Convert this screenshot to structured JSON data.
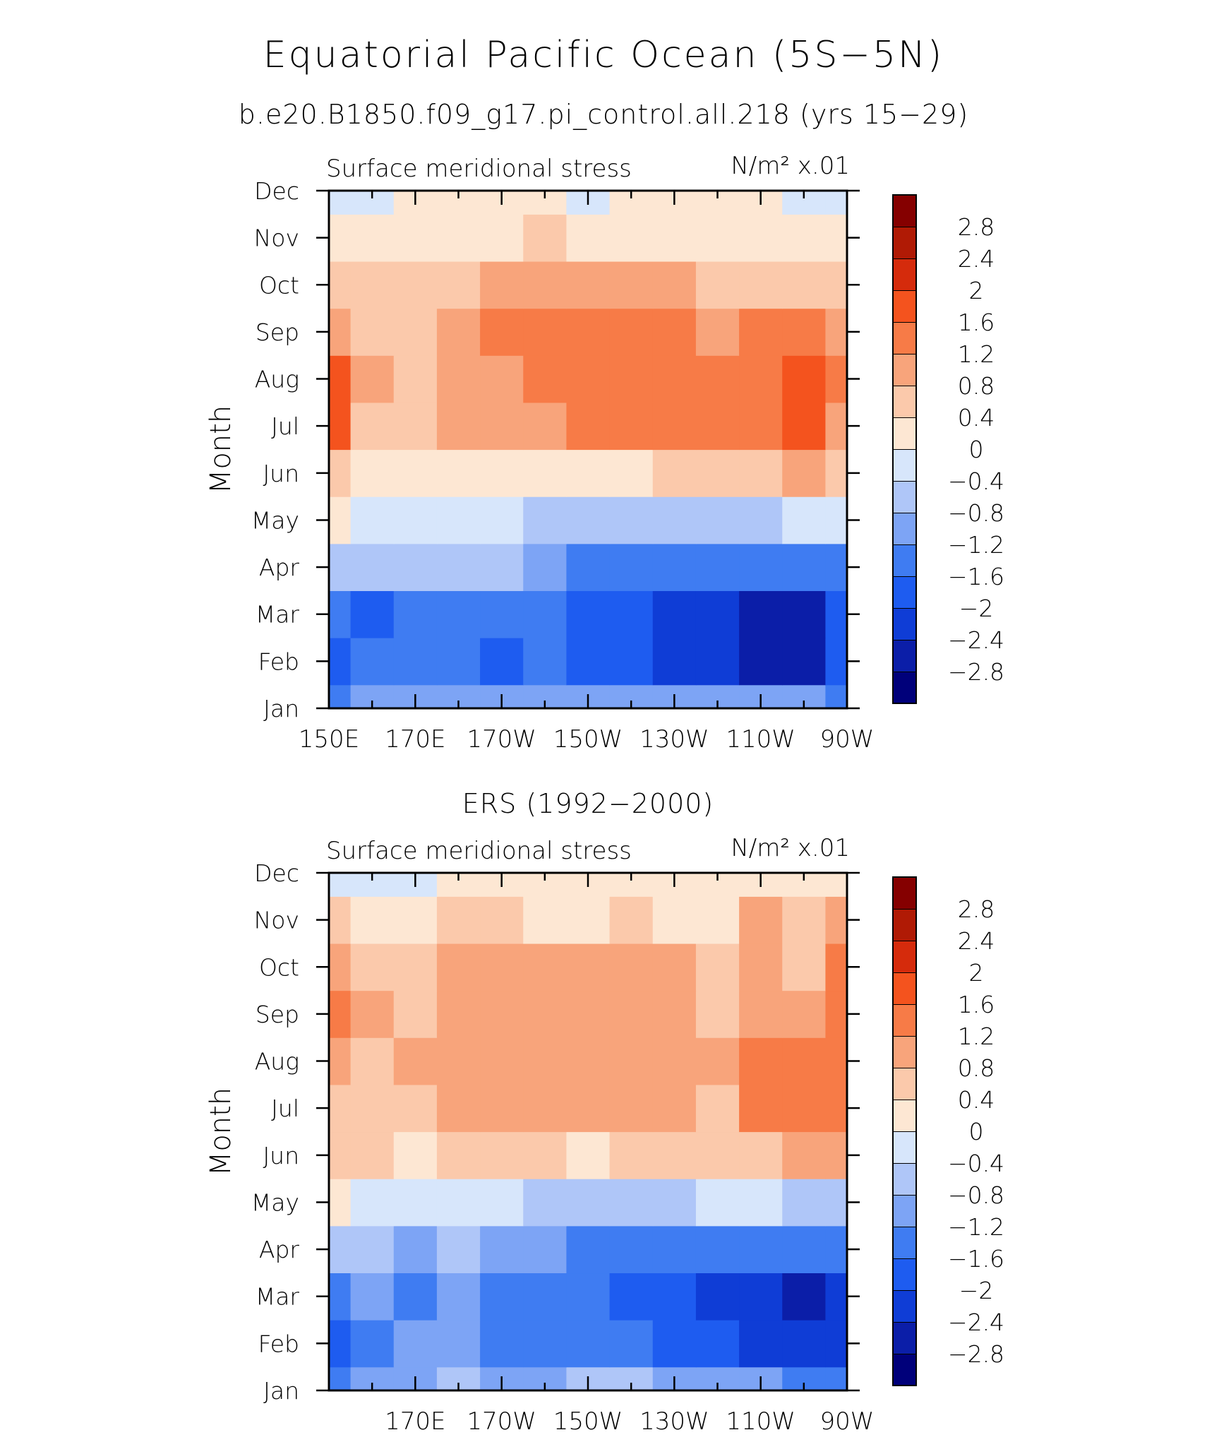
{
  "figure": {
    "title": "Equatorial Pacific Ocean (5S−5N)",
    "subtitle": "b.e20.B1850.f09_g17.pi_control.all.218 (yrs 15−29)"
  },
  "chart_data": [
    {
      "type": "heatmap",
      "panel_title": "",
      "left_label": "Surface meridional stress",
      "right_label": "N/m² x.01",
      "ylabel": "Month",
      "xlabel": "",
      "x_ticks": [
        "150E",
        "170E",
        "170W",
        "150W",
        "130W",
        "110W",
        "90W"
      ],
      "y_ticks": [
        "Jan",
        "Feb",
        "Mar",
        "Apr",
        "May",
        "Jun",
        "Jul",
        "Aug",
        "Sep",
        "Oct",
        "Nov",
        "Dec"
      ],
      "x_range": [
        150,
        270
      ],
      "y_range": [
        1,
        12
      ],
      "x": [
        150,
        160,
        170,
        180,
        190,
        200,
        210,
        220,
        230,
        240,
        250,
        260,
        270
      ],
      "z": [
        [
          -1.5,
          -1.1,
          -1.0,
          -1.0,
          -1.0,
          -1.1,
          -1.1,
          -1.1,
          -1.0,
          -1.0,
          -1.1,
          -1.2,
          -1.3
        ],
        [
          -2.0,
          -1.6,
          -1.6,
          -1.6,
          -1.7,
          -1.6,
          -1.8,
          -1.9,
          -2.1,
          -2.3,
          -2.6,
          -2.5,
          -2.0
        ],
        [
          -1.6,
          -1.7,
          -1.6,
          -1.5,
          -1.4,
          -1.3,
          -1.7,
          -2.0,
          -2.1,
          -2.2,
          -2.6,
          -2.6,
          -2.0
        ],
        [
          -0.5,
          -0.7,
          -0.7,
          -0.6,
          -0.7,
          -1.0,
          -1.4,
          -1.4,
          -1.5,
          -1.6,
          -1.6,
          -1.5,
          -1.3
        ],
        [
          0.2,
          -0.2,
          -0.4,
          -0.4,
          -0.3,
          -0.5,
          -0.8,
          -0.7,
          -0.7,
          -0.6,
          -0.5,
          -0.3,
          -0.2
        ],
        [
          0.7,
          0.2,
          0.2,
          0.1,
          0.2,
          0.1,
          0.2,
          0.3,
          0.4,
          0.5,
          0.7,
          0.8,
          0.6
        ],
        [
          1.6,
          0.7,
          0.6,
          0.9,
          0.9,
          1.1,
          1.3,
          1.3,
          1.3,
          1.3,
          1.4,
          1.8,
          0.9
        ],
        [
          1.6,
          0.8,
          0.7,
          1.0,
          1.1,
          1.3,
          1.4,
          1.5,
          1.5,
          1.5,
          1.4,
          1.8,
          1.2
        ],
        [
          1.0,
          0.5,
          0.6,
          1.0,
          1.2,
          1.3,
          1.5,
          1.5,
          1.4,
          1.1,
          1.2,
          1.4,
          0.8
        ],
        [
          0.5,
          0.4,
          0.4,
          0.6,
          0.9,
          1.0,
          1.0,
          1.0,
          0.8,
          0.6,
          0.6,
          0.7,
          0.5
        ],
        [
          0.2,
          0.2,
          0.2,
          0.3,
          0.3,
          0.4,
          0.3,
          0.3,
          0.2,
          0.2,
          0.2,
          0.3,
          0.3
        ],
        [
          -0.1,
          -0.1,
          0.0,
          0.1,
          0.1,
          0.0,
          -0.2,
          0.1,
          0.1,
          0.1,
          0.0,
          -0.1,
          -0.1
        ]
      ]
    },
    {
      "type": "heatmap",
      "panel_title": "ERS (1992−2000)",
      "left_label": "Surface meridional stress",
      "right_label": "N/m² x.01",
      "ylabel": "Month",
      "xlabel": "",
      "x_ticks": [
        "",
        "170E",
        "170W",
        "150W",
        "130W",
        "110W",
        "90W"
      ],
      "y_ticks": [
        "Jan",
        "Feb",
        "Mar",
        "Apr",
        "May",
        "Jun",
        "Jul",
        "Aug",
        "Sep",
        "Oct",
        "Nov",
        "Dec"
      ],
      "x_range": [
        150,
        270
      ],
      "y_range": [
        1,
        12
      ],
      "x": [
        150,
        160,
        170,
        180,
        190,
        200,
        210,
        220,
        230,
        240,
        250,
        260,
        270
      ],
      "z": [
        [
          -1.3,
          -0.9,
          -1.0,
          -0.8,
          -0.9,
          -0.9,
          -0.8,
          -0.8,
          -0.9,
          -1.0,
          -1.2,
          -1.3,
          -1.5
        ],
        [
          -1.8,
          -1.3,
          -1.2,
          -1.1,
          -1.3,
          -1.4,
          -1.3,
          -1.6,
          -1.9,
          -2.0,
          -2.2,
          -2.4,
          -2.4
        ],
        [
          -1.5,
          -1.2,
          -1.3,
          -1.0,
          -1.3,
          -1.4,
          -1.3,
          -1.8,
          -2.0,
          -2.3,
          -2.4,
          -2.6,
          -2.4
        ],
        [
          -0.8,
          -0.7,
          -0.9,
          -0.8,
          -1.0,
          -1.2,
          -1.4,
          -1.6,
          -1.5,
          -1.3,
          -1.4,
          -1.6,
          -1.6
        ],
        [
          0.2,
          -0.1,
          -0.3,
          -0.4,
          -0.4,
          -0.6,
          -0.6,
          -0.6,
          -0.5,
          -0.4,
          -0.4,
          -0.6,
          -0.7
        ],
        [
          0.4,
          0.5,
          0.3,
          0.5,
          0.4,
          0.4,
          0.3,
          0.4,
          0.4,
          0.4,
          0.5,
          0.9,
          0.8
        ],
        [
          0.7,
          0.6,
          0.7,
          0.9,
          0.9,
          0.9,
          0.9,
          1.0,
          0.9,
          0.7,
          1.3,
          1.4,
          1.3
        ],
        [
          0.9,
          0.7,
          0.8,
          1.0,
          1.1,
          1.0,
          0.9,
          1.0,
          1.0,
          0.8,
          1.2,
          1.3,
          1.4
        ],
        [
          1.3,
          0.9,
          0.7,
          1.0,
          1.0,
          0.8,
          0.9,
          1.0,
          0.9,
          0.6,
          0.8,
          0.9,
          1.4
        ],
        [
          0.9,
          0.7,
          0.6,
          0.8,
          1.1,
          0.8,
          0.8,
          0.9,
          0.8,
          0.5,
          0.8,
          0.6,
          1.3
        ],
        [
          0.4,
          0.3,
          0.3,
          0.5,
          0.5,
          0.3,
          0.3,
          0.4,
          0.3,
          0.3,
          0.8,
          0.5,
          0.8
        ],
        [
          -0.2,
          -0.1,
          -0.2,
          0.1,
          0.1,
          0.1,
          0.1,
          0.1,
          0.2,
          0.1,
          0.3,
          0.2,
          0.3
        ]
      ]
    }
  ],
  "colorbar": {
    "levels": [
      -2.8,
      -2.4,
      -2,
      -1.6,
      -1.2,
      -0.8,
      -0.4,
      0,
      0.4,
      0.8,
      1.2,
      1.6,
      2,
      2.4,
      2.8
    ],
    "labels": [
      "−2.8",
      "−2.4",
      "−2",
      "−1.6",
      "−1.2",
      "−0.8",
      "−0.4",
      "0",
      "0.4",
      "0.8",
      "1.2",
      "1.6",
      "2",
      "2.4",
      "2.8"
    ],
    "colors": [
      "#00007a",
      "#0b1ea8",
      "#0f3dd6",
      "#1e5cf0",
      "#3f7cf2",
      "#7da4f5",
      "#afc6f8",
      "#d7e6fb",
      "#fde7d3",
      "#fbc9ab",
      "#f8a47b",
      "#f77b47",
      "#f4531e",
      "#d52b0c",
      "#b01a05",
      "#850000"
    ]
  }
}
